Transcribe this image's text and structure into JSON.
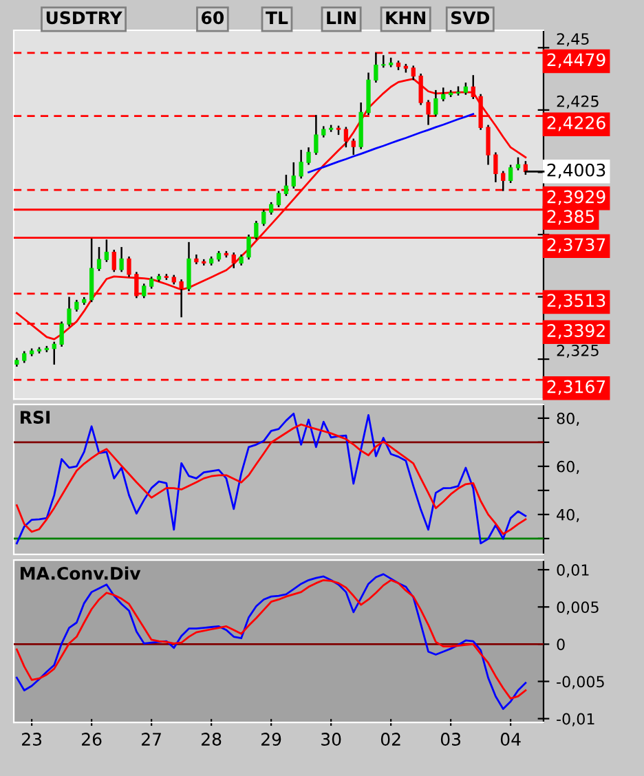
{
  "chart_data": [
    {
      "type": "candlestick",
      "title": "USDTRY",
      "annotations": [
        "60",
        "TL",
        "LIN",
        "KHN",
        "SVD",
        "2,4003"
      ],
      "categories": [
        null,
        null,
        "23",
        null,
        null,
        null,
        null,
        null,
        null,
        null,
        "26",
        null,
        null,
        null,
        null,
        null,
        null,
        null,
        "27",
        null,
        null,
        null,
        null,
        null,
        null,
        null,
        "28",
        null,
        null,
        null,
        null,
        null,
        null,
        null,
        "29",
        null,
        null,
        null,
        null,
        null,
        null,
        null,
        "30",
        null,
        null,
        null,
        null,
        null,
        null,
        null,
        "02",
        null,
        null,
        null,
        null,
        null,
        null,
        null,
        "03",
        null,
        null,
        null,
        null,
        null,
        null,
        null,
        "04",
        null,
        null
      ],
      "ohlc": [
        [
          2.323,
          2.3255,
          2.322,
          2.3245
        ],
        [
          2.3245,
          2.3282,
          2.3235,
          2.3272
        ],
        [
          2.3272,
          2.3293,
          2.3262,
          2.3283
        ],
        [
          2.3283,
          2.3298,
          2.3273,
          2.3288
        ],
        [
          2.3288,
          2.3303,
          2.3278,
          2.3293
        ],
        [
          2.3293,
          2.332,
          2.3228,
          2.331
        ],
        [
          2.331,
          2.3401,
          2.33,
          2.3391
        ],
        [
          2.3391,
          2.35,
          2.3381,
          2.3451
        ],
        [
          2.3451,
          2.3488,
          2.3441,
          2.3478
        ],
        [
          2.3478,
          2.3499,
          2.3468,
          2.3489
        ],
        [
          2.3489,
          2.3734,
          2.3479,
          2.3614
        ],
        [
          2.3614,
          2.37,
          2.3604,
          2.365
        ],
        [
          2.365,
          2.373,
          2.364,
          2.3679
        ],
        [
          2.3679,
          2.3689,
          2.36,
          2.361
        ],
        [
          2.361,
          2.37,
          2.36,
          2.3652
        ],
        [
          2.3652,
          2.3662,
          2.358,
          2.359
        ],
        [
          2.359,
          2.36,
          2.3495,
          2.3505
        ],
        [
          2.3505,
          2.3553,
          2.3495,
          2.3543
        ],
        [
          2.3543,
          2.3581,
          2.3533,
          2.3571
        ],
        [
          2.3571,
          2.3592,
          2.3561,
          2.3582
        ],
        [
          2.3582,
          2.3592,
          2.3568,
          2.3578
        ],
        [
          2.3578,
          2.3588,
          2.355,
          2.356
        ],
        [
          2.356,
          2.357,
          2.3418,
          2.3533
        ],
        [
          2.3533,
          2.372,
          2.3523,
          2.3652
        ],
        [
          2.3652,
          2.367,
          2.3631,
          2.3641
        ],
        [
          2.3641,
          2.3651,
          2.3626,
          2.3636
        ],
        [
          2.3636,
          2.3662,
          2.3626,
          2.3652
        ],
        [
          2.3652,
          2.3684,
          2.3642,
          2.3674
        ],
        [
          2.3674,
          2.3684,
          2.3658,
          2.3668
        ],
        [
          2.3668,
          2.3678,
          2.3615,
          2.3636
        ],
        [
          2.3636,
          2.367,
          2.3626,
          2.366
        ],
        [
          2.366,
          2.375,
          2.365,
          2.374
        ],
        [
          2.374,
          2.3805,
          2.373,
          2.3795
        ],
        [
          2.3795,
          2.385,
          2.3785,
          2.384
        ],
        [
          2.384,
          2.388,
          2.383,
          2.387
        ],
        [
          2.387,
          2.3925,
          2.386,
          2.3915
        ],
        [
          2.3915,
          2.399,
          2.3905,
          2.3945
        ],
        [
          2.3945,
          2.404,
          2.3935,
          2.3985
        ],
        [
          2.3985,
          2.409,
          2.3975,
          2.404
        ],
        [
          2.404,
          2.41,
          2.403,
          2.408
        ],
        [
          2.408,
          2.423,
          2.407,
          2.415
        ],
        [
          2.415,
          2.4185,
          2.414,
          2.4172
        ],
        [
          2.4172,
          2.419,
          2.4162,
          2.4177
        ],
        [
          2.4177,
          2.4187,
          2.415,
          2.4172
        ],
        [
          2.4172,
          2.4182,
          2.41,
          2.4125
        ],
        [
          2.4125,
          2.4135,
          2.407,
          2.4103
        ],
        [
          2.4103,
          2.428,
          2.4093,
          2.424
        ],
        [
          2.424,
          2.44,
          2.423,
          2.437
        ],
        [
          2.437,
          2.448,
          2.436,
          2.443
        ],
        [
          2.443,
          2.447,
          2.442,
          2.4432
        ],
        [
          2.4432,
          2.446,
          2.4422,
          2.4438
        ],
        [
          2.4438,
          2.4448,
          2.441,
          2.4425
        ],
        [
          2.4425,
          2.4435,
          2.44,
          2.4418
        ],
        [
          2.4418,
          2.4428,
          2.437,
          2.4386
        ],
        [
          2.4386,
          2.4396,
          2.427,
          2.428
        ],
        [
          2.428,
          2.429,
          2.419,
          2.4234
        ],
        [
          2.4234,
          2.433,
          2.4224,
          2.4295
        ],
        [
          2.4295,
          2.434,
          2.4285,
          2.4312
        ],
        [
          2.4312,
          2.433,
          2.4302,
          2.4318
        ],
        [
          2.4318,
          2.4345,
          2.4308,
          2.4321
        ],
        [
          2.4321,
          2.436,
          2.4311,
          2.4342
        ],
        [
          2.4342,
          2.439,
          2.4294,
          2.4304
        ],
        [
          2.4304,
          2.4314,
          2.417,
          2.418
        ],
        [
          2.418,
          2.419,
          2.403,
          2.407
        ],
        [
          2.407,
          2.408,
          2.396,
          2.3995
        ],
        [
          2.3995,
          2.4005,
          2.3925,
          2.3967
        ],
        [
          2.3967,
          2.403,
          2.3957,
          2.4018
        ],
        [
          2.4018,
          2.406,
          2.4008,
          2.403
        ],
        [
          2.403,
          2.4045,
          2.399,
          2.4003
        ]
      ],
      "series": [
        {
          "type": "line",
          "color": "#ff0000",
          "values": [
            2.3435,
            2.3411,
            2.3387,
            2.3363,
            2.3339,
            2.333,
            2.335,
            2.3375,
            2.3401,
            2.3443,
            2.349,
            2.353,
            2.3572,
            2.3582,
            2.358,
            2.3578,
            2.3576,
            2.3574,
            2.3571,
            2.3561,
            2.3551,
            2.354,
            2.3529,
            2.3537,
            2.3551,
            2.3565,
            2.3579,
            2.3593,
            2.3607,
            2.3632,
            2.3663,
            2.3692,
            2.3725,
            2.3758,
            2.3791,
            2.3824,
            2.3858,
            2.3892,
            2.3926,
            2.396,
            2.3994,
            2.4028,
            2.4058,
            2.4088,
            2.4117,
            2.416,
            2.4209,
            2.4258,
            2.4288,
            2.4317,
            2.4343,
            2.4362,
            2.4369,
            2.4375,
            2.435,
            2.4325,
            2.4316,
            2.4318,
            2.432,
            2.4321,
            2.4321,
            2.4321,
            2.4272,
            2.4229,
            2.4187,
            2.4142,
            2.41,
            2.408,
            2.406
          ]
        },
        {
          "type": "line",
          "color": "#0000ff",
          "values": [
            null,
            null,
            null,
            null,
            null,
            null,
            null,
            null,
            null,
            null,
            null,
            null,
            null,
            null,
            null,
            null,
            null,
            null,
            null,
            null,
            null,
            null,
            null,
            null,
            null,
            null,
            null,
            null,
            null,
            null,
            null,
            null,
            null,
            null,
            null,
            null,
            null,
            null,
            null,
            2.4,
            2.4011,
            2.4021,
            2.4032,
            2.4043,
            2.4053,
            2.4064,
            2.4074,
            2.4085,
            2.4096,
            2.4106,
            2.4117,
            2.4128,
            2.4138,
            2.4149,
            2.416,
            2.417,
            2.4181,
            2.4191,
            2.4202,
            2.4213,
            2.4223,
            2.4234,
            null,
            null,
            null,
            null,
            null,
            null,
            null
          ]
        }
      ],
      "ylim": [
        2.309,
        2.457
      ],
      "yticks": [
        {
          "value": 2.45,
          "label": "2,45"
        },
        {
          "value": 2.425,
          "label": "2,425"
        },
        {
          "value": 2.4,
          "label": null
        },
        {
          "value": 2.375,
          "label": null
        },
        {
          "value": 2.35,
          "label": null
        },
        {
          "value": 2.325,
          "label": "2,325"
        }
      ],
      "tick_labels": "y",
      "ref_lines": [
        {
          "axis": "y",
          "value": 2.4479,
          "label": "2,4479",
          "color": "#ff0000",
          "line_style": "dashed"
        },
        {
          "axis": "y",
          "value": 2.4226,
          "label": "2,4226",
          "color": "#ff0000",
          "line_style": "dashed"
        },
        {
          "axis": "y",
          "value": 2.3929,
          "label": "2,3929",
          "color": "#ff0000",
          "line_style": "dashed"
        },
        {
          "axis": "y",
          "value": 2.385,
          "label": "2,385",
          "color": "#ff0000",
          "line_style": "solid"
        },
        {
          "axis": "y",
          "value": 2.3737,
          "label": "2,3737",
          "color": "#ff0000",
          "line_style": "solid"
        },
        {
          "axis": "y",
          "value": 2.3513,
          "label": "2,3513",
          "color": "#ff0000",
          "line_style": "dashed"
        },
        {
          "axis": "y",
          "value": 2.3392,
          "label": "2,3392",
          "color": "#ff0000",
          "line_style": "dashed"
        },
        {
          "axis": "y",
          "value": 2.3167,
          "label": "2,3167",
          "color": "#ff0000",
          "line_style": "dashed"
        }
      ]
    },
    {
      "type": "line",
      "title": "RSI",
      "categories": [
        null,
        null,
        "23",
        null,
        null,
        null,
        null,
        null,
        null,
        null,
        "26",
        null,
        null,
        null,
        null,
        null,
        null,
        null,
        "27",
        null,
        null,
        null,
        null,
        null,
        null,
        null,
        "28",
        null,
        null,
        null,
        null,
        null,
        null,
        null,
        "29",
        null,
        null,
        null,
        null,
        null,
        null,
        null,
        "30",
        null,
        null,
        null,
        null,
        null,
        null,
        null,
        "02",
        null,
        null,
        null,
        null,
        null,
        null,
        null,
        "03",
        null,
        null,
        null,
        null,
        null,
        null,
        null,
        "04",
        null,
        null
      ],
      "series": [
        {
          "color": "#0000ff",
          "values": [
            28,
            35,
            37.8,
            38,
            38.5,
            48,
            63,
            59.4,
            60,
            66,
            76.6,
            65.5,
            66,
            55,
            59.4,
            48,
            40.4,
            46,
            51,
            53.7,
            53,
            33.7,
            61.3,
            56,
            55,
            57.5,
            58,
            58.5,
            55,
            42.3,
            57,
            68,
            69,
            70.5,
            74.7,
            75.5,
            79,
            81.9,
            69,
            79.4,
            68,
            78.5,
            72,
            72.5,
            72.8,
            52.8,
            67,
            81.3,
            64.2,
            71.8,
            65.1,
            64,
            62.3,
            51.8,
            42,
            33.7,
            49,
            50.9,
            51,
            51.8,
            59.4,
            50.9,
            28.0,
            29.9,
            35.6,
            29.9,
            38.5,
            41.3,
            39.4
          ]
        },
        {
          "color": "#ff0000",
          "values": [
            43.8,
            36,
            32.8,
            33.9,
            38,
            42.7,
            47.9,
            53.1,
            58.2,
            61.1,
            63.4,
            65.6,
            67.2,
            63.7,
            60.2,
            56.8,
            53.4,
            50.2,
            47.0,
            49.0,
            51.0,
            50.9,
            50.4,
            51.9,
            53.4,
            55.0,
            55.9,
            56.3,
            56.3,
            54.8,
            53.3,
            56.3,
            60.9,
            65.3,
            69.9,
            71.9,
            73.9,
            75.9,
            77.4,
            76.4,
            75.5,
            74.6,
            73.7,
            72.5,
            71.3,
            69.1,
            66.5,
            64.6,
            68.2,
            70.3,
            68.0,
            65.7,
            63.5,
            61.2,
            55,
            48.9,
            42.6,
            45.3,
            48.4,
            50.8,
            52.6,
            53.0,
            45.6,
            40,
            36.2,
            31.9,
            33.7,
            36,
            38.0
          ]
        }
      ],
      "ylim": [
        23.4,
        85.7
      ],
      "yticks": [
        {
          "value": 80,
          "label": "80,"
        },
        {
          "value": 70,
          "label": null
        },
        {
          "value": 60,
          "label": "60,"
        },
        {
          "value": 50,
          "label": null
        },
        {
          "value": 40,
          "label": "40,"
        },
        {
          "value": 30,
          "label": null
        }
      ],
      "tick_labels": "y",
      "ref_lines": [
        {
          "axis": "y",
          "value": 70,
          "color": "#800000",
          "line_style": "solid"
        },
        {
          "axis": "y",
          "value": 30,
          "color": "#008000",
          "line_style": "solid"
        }
      ]
    },
    {
      "type": "line",
      "title": "MA.Conv.Div",
      "categories": [
        null,
        null,
        "23",
        null,
        null,
        null,
        null,
        null,
        null,
        null,
        "26",
        null,
        null,
        null,
        null,
        null,
        null,
        null,
        "27",
        null,
        null,
        null,
        null,
        null,
        null,
        null,
        "28",
        null,
        null,
        null,
        null,
        null,
        null,
        null,
        "29",
        null,
        null,
        null,
        null,
        null,
        null,
        null,
        "30",
        null,
        null,
        null,
        null,
        null,
        null,
        null,
        "02",
        null,
        null,
        null,
        null,
        null,
        null,
        null,
        "03",
        null,
        null,
        null,
        null,
        null,
        null,
        null,
        "04",
        null,
        null
      ],
      "series": [
        {
          "color": "#0000ff",
          "values": [
            -0.0045,
            -0.0062,
            -0.0056,
            -0.0047,
            -0.0037,
            -0.0028,
            0.0001,
            0.0022,
            0.0029,
            0.0055,
            0.007,
            0.0075,
            0.008,
            0.0065,
            0.0054,
            0.0045,
            0.0017,
            0.0001,
            0.0002,
            0.0003,
            0.0004,
            -0.0005,
            0.0011,
            0.0021,
            0.0021,
            0.0022,
            0.0023,
            0.0024,
            0.0019,
            0.001,
            0.0008,
            0.0036,
            0.0051,
            0.006,
            0.0064,
            0.0065,
            0.0067,
            0.0074,
            0.0081,
            0.0086,
            0.0089,
            0.0091,
            0.0086,
            0.008,
            0.007,
            0.0043,
            0.0062,
            0.0081,
            0.009,
            0.0094,
            0.0088,
            0.0082,
            0.0077,
            0.0063,
            0.0027,
            -0.001,
            -0.0014,
            -0.001,
            -0.0006,
            -0.0001,
            0.0005,
            0.0004,
            -0.0008,
            -0.0045,
            -0.007,
            -0.0087,
            -0.0077,
            -0.0062,
            -0.0052
          ]
        },
        {
          "color": "#ff0000",
          "values": [
            -0.0007,
            -0.003,
            -0.0048,
            -0.0046,
            -0.0041,
            -0.0033,
            -0.0016,
            0.0001,
            0.001,
            0.0029,
            0.0047,
            0.006,
            0.0069,
            0.0066,
            0.0061,
            0.0054,
            0.0038,
            0.0022,
            0.0006,
            0.0004,
            0.0003,
            0.0001,
            0.0002,
            0.001,
            0.0016,
            0.0018,
            0.002,
            0.0022,
            0.0024,
            0.0019,
            0.0014,
            0.0025,
            0.0035,
            0.0046,
            0.0057,
            0.006,
            0.0064,
            0.0067,
            0.007,
            0.0077,
            0.0082,
            0.0086,
            0.0085,
            0.0082,
            0.0076,
            0.0065,
            0.0053,
            0.006,
            0.0069,
            0.0079,
            0.0086,
            0.0082,
            0.0072,
            0.0064,
            0.0046,
            0.0026,
            0.0003,
            -0.0003,
            -0.0003,
            -0.0002,
            -0.0001,
            0.0,
            -0.0013,
            -0.0025,
            -0.0043,
            -0.0059,
            -0.0073,
            -0.007,
            -0.0062
          ]
        }
      ],
      "ylim": [
        -0.0105,
        0.0113
      ],
      "yticks": [
        {
          "value": 0.01,
          "label": "0,01"
        },
        {
          "value": 0.005,
          "label": "0,005"
        },
        {
          "value": 0,
          "label": "0"
        },
        {
          "value": -0.005,
          "label": "-0,005"
        },
        {
          "value": -0.01,
          "label": "-0,01"
        }
      ],
      "ref_lines": [
        {
          "axis": "y",
          "value": 0,
          "color": "#800000",
          "line_style": "solid"
        }
      ]
    }
  ]
}
